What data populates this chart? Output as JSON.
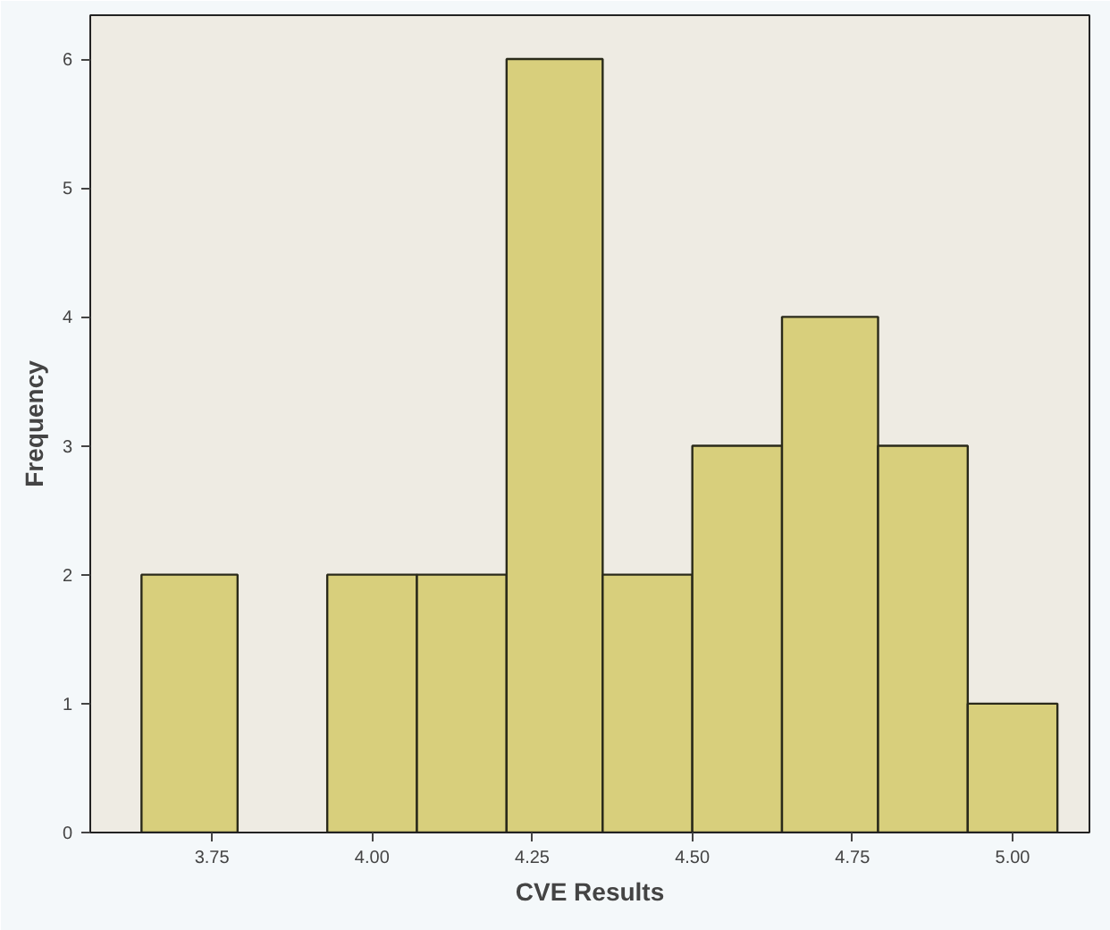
{
  "chart_data": {
    "type": "histogram",
    "xlabel": "CVE Results",
    "ylabel": "Frequency",
    "bins": [
      3.64,
      3.79,
      3.93,
      4.07,
      4.21,
      4.36,
      4.5,
      4.64,
      4.79,
      4.93,
      5.07
    ],
    "values": [
      2,
      0,
      2,
      2,
      6,
      2,
      3,
      4,
      3,
      1
    ],
    "color": "#d8cf7c",
    "xlim": [
      3.56,
      5.12
    ],
    "xticks": [
      {
        "value": 3.75,
        "label": "3.75"
      },
      {
        "value": 4.0,
        "label": "4.00"
      },
      {
        "value": 4.25,
        "label": "4.25"
      },
      {
        "value": 4.5,
        "label": "4.50"
      },
      {
        "value": 4.75,
        "label": "4.75"
      },
      {
        "value": 5.0,
        "label": "5.00"
      }
    ],
    "ylim": [
      0,
      6.34
    ],
    "yticks": [
      0,
      1,
      2,
      3,
      4,
      5,
      6
    ],
    "grid": false
  }
}
